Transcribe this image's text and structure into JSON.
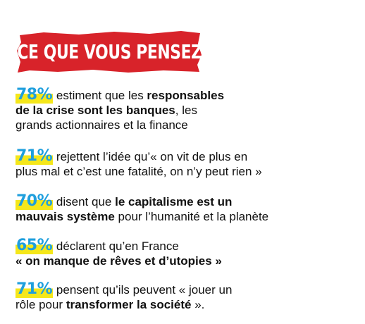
{
  "banner": {
    "title": "CE QUE VOUS PENSEZ",
    "color": "#d8232a"
  },
  "accent": {
    "percent_color": "#1f9fdd",
    "highlight_color": "#f5e71a"
  },
  "stats": [
    {
      "percent": "78%",
      "t1": "estimient que les ",
      "b1": "responsables",
      "t2": "",
      "b2": "de la crise sont les banques",
      "t3": ", les",
      "t4": "grands actionnaires et la finance"
    },
    {
      "percent": "71%",
      "t1": "rejettent l’idée qu’« on vit de plus en",
      "t2": "plus mal et c’est une fatalité, on n’y peut rien »"
    },
    {
      "percent": "70%",
      "t1": "disent que ",
      "b1": "le capitalisme est un",
      "b2": "mauvais système",
      "t2": " pour l’humanité et la planète"
    },
    {
      "percent": "65%",
      "t1": "déclarent qu’en France",
      "b1": "« on manque de rêves et d’utopies »"
    },
    {
      "percent": "71%",
      "t1": "pensent qu’ils peuvent « jouer un",
      "t2": "rôle pour ",
      "b1": "transformer la société",
      "t3": " »."
    }
  ]
}
